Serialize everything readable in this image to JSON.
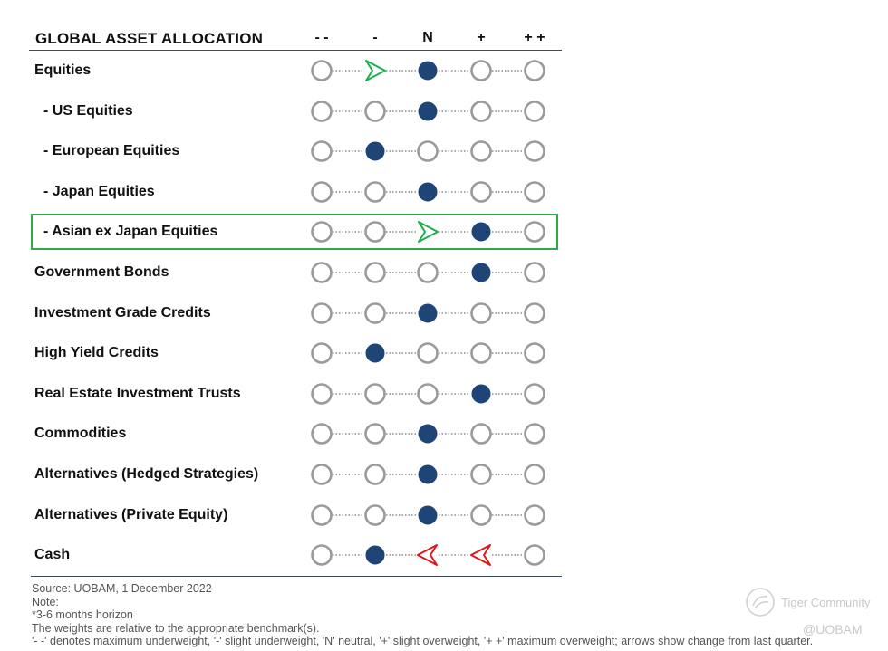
{
  "header": {
    "title": "GLOBAL ASSET ALLOCATION",
    "columns": [
      "- -",
      "-",
      "N",
      "+",
      "+ +"
    ]
  },
  "rows": [
    {
      "label": "Equities",
      "sub": false,
      "selected": 2,
      "arrows": [
        {
          "col": 1,
          "dir": "right",
          "color": "green"
        }
      ]
    },
    {
      "label": "- US Equities",
      "sub": true,
      "selected": 2,
      "arrows": []
    },
    {
      "label": "- European Equities",
      "sub": true,
      "selected": 1,
      "arrows": []
    },
    {
      "label": "- Japan Equities",
      "sub": true,
      "selected": 2,
      "arrows": []
    },
    {
      "label": "- Asian ex Japan Equities",
      "sub": true,
      "selected": 3,
      "highlighted": true,
      "arrows": [
        {
          "col": 2,
          "dir": "right",
          "color": "green"
        }
      ]
    },
    {
      "label": "Government Bonds",
      "sub": false,
      "selected": 3,
      "arrows": []
    },
    {
      "label": "Investment Grade Credits",
      "sub": false,
      "selected": 2,
      "arrows": []
    },
    {
      "label": "High Yield Credits",
      "sub": false,
      "selected": 1,
      "arrows": []
    },
    {
      "label": "Real Estate Investment Trusts",
      "sub": false,
      "selected": 3,
      "arrows": []
    },
    {
      "label": "Commodities",
      "sub": false,
      "selected": 2,
      "arrows": []
    },
    {
      "label": "Alternatives (Hedged Strategies)",
      "sub": false,
      "selected": 2,
      "arrows": []
    },
    {
      "label": "Alternatives (Private Equity)",
      "sub": false,
      "selected": 2,
      "arrows": []
    },
    {
      "label": "Cash",
      "sub": false,
      "selected": 1,
      "arrows": [
        {
          "col": 2,
          "dir": "left",
          "color": "red"
        },
        {
          "col": 3,
          "dir": "left",
          "color": "red"
        }
      ]
    }
  ],
  "colors": {
    "filled": "#1f4577",
    "empty_stroke": "#9a9a9a",
    "arrow_green": "#1db04c",
    "arrow_red": "#e0161b",
    "highlight_border": "#2faa4a"
  },
  "footer": {
    "source": "Source: UOBAM,  1 December 2022",
    "note": "Note:",
    "line1": "*3-6 months horizon",
    "line2": "The weights are relative to the appropriate benchmark(s).",
    "line3": "'- -' denotes maximum underweight, '-' slight underweight, 'N' neutral, '+' slight overweight, '+ +' maximum overweight; arrows show change from last quarter."
  },
  "watermarks": {
    "tiger": "Tiger Community",
    "uobam": "@UOBAM"
  }
}
